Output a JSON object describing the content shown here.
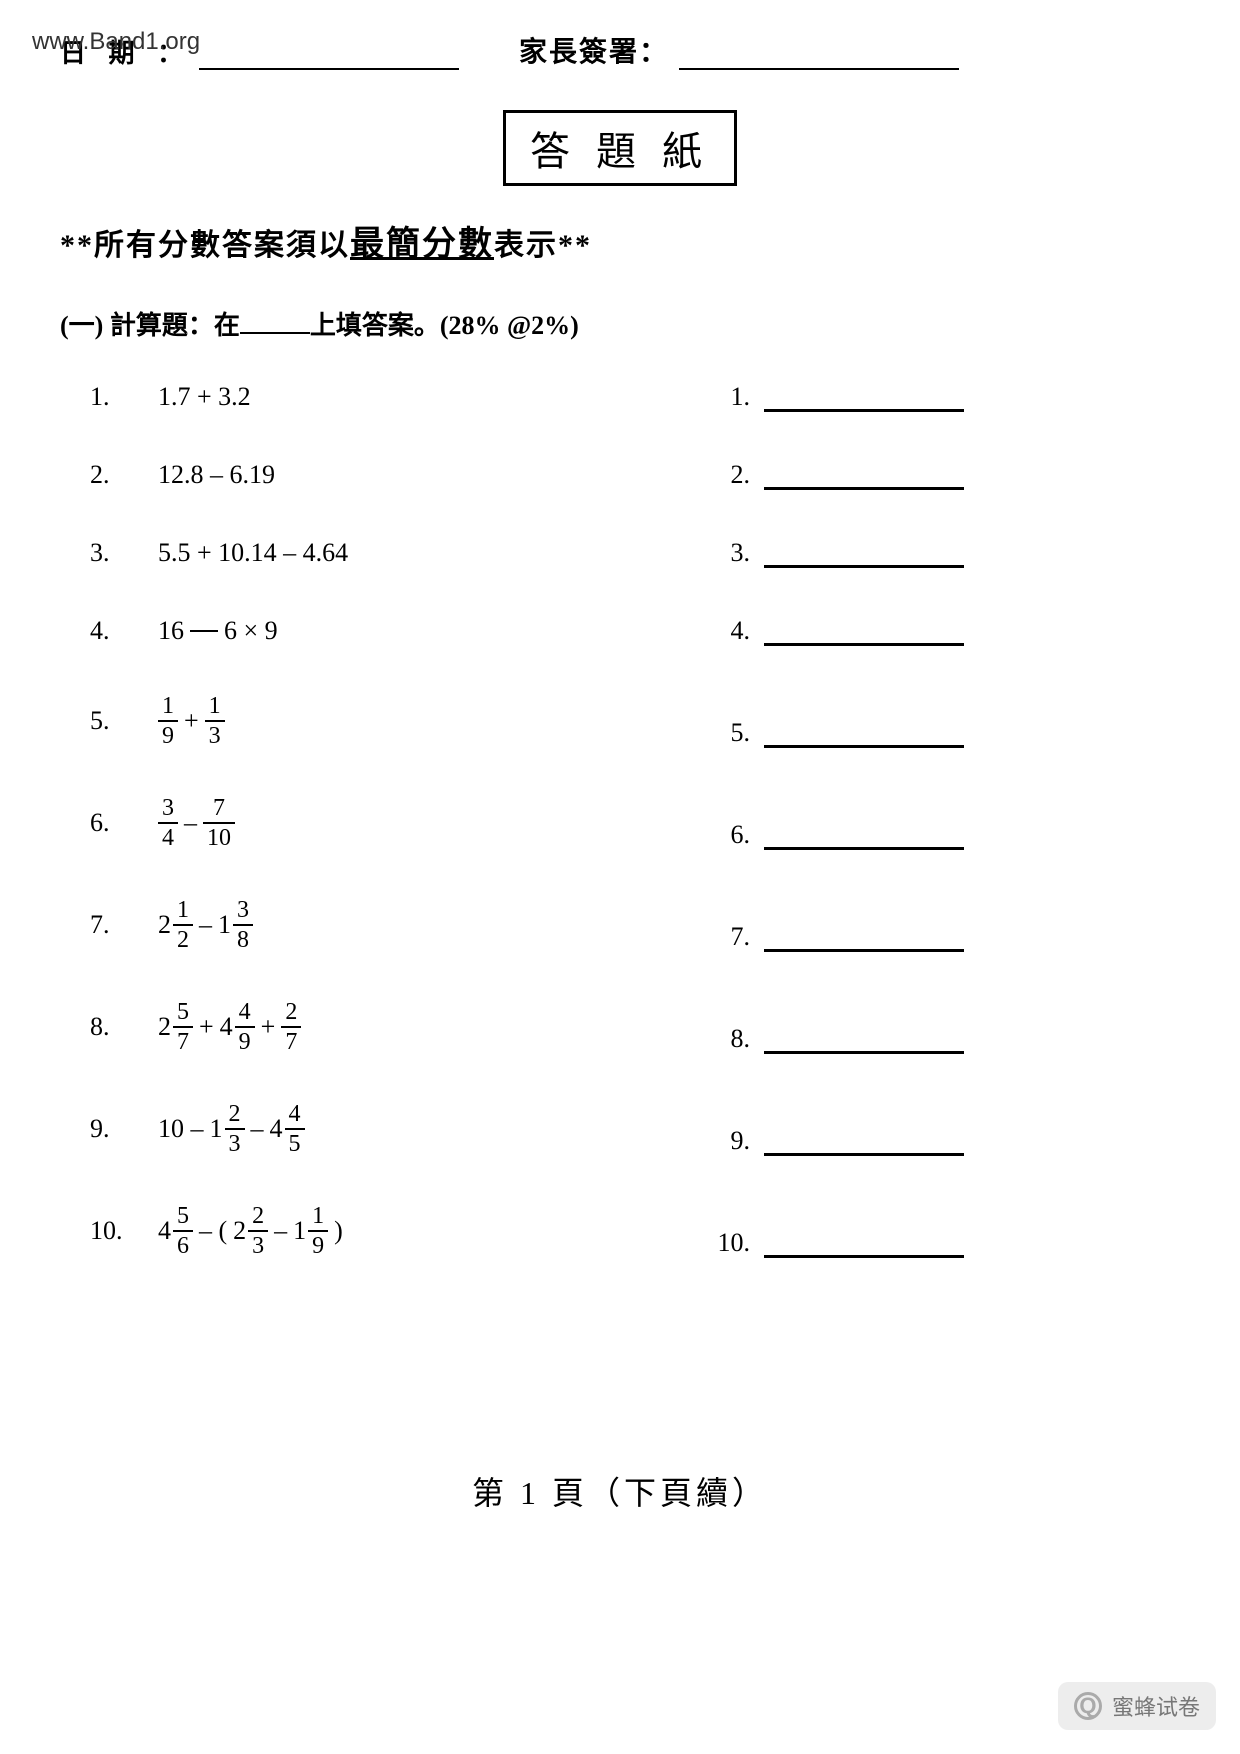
{
  "header": {
    "date_label": "日 期 ：",
    "watermark": "www.Band1.org",
    "sign_label": "家長簽署："
  },
  "title": "答 題 紙",
  "instruction": {
    "prefix": "**所有分數答案須以",
    "emph": "最簡分數",
    "suffix": "表示**"
  },
  "section": {
    "label_prefix": "(一) 計算題：在",
    "label_suffix": "上填答案。(28%   @2%)"
  },
  "questions": [
    {
      "n": "1.",
      "type": "text",
      "expr": "1.7 + 3.2"
    },
    {
      "n": "2.",
      "type": "text",
      "expr": "12.8 – 6.19"
    },
    {
      "n": "3.",
      "type": "text",
      "expr": "5.5 + 10.14 – 4.64"
    },
    {
      "n": "4.",
      "type": "gap",
      "a": "16",
      "b": "6 × 9"
    },
    {
      "n": "5.",
      "type": "frac2",
      "op": "+",
      "f1": [
        "1",
        "9"
      ],
      "f2": [
        "1",
        "3"
      ]
    },
    {
      "n": "6.",
      "type": "frac2",
      "op": "–",
      "f1": [
        "3",
        "4"
      ],
      "f2": [
        "7",
        "10"
      ]
    },
    {
      "n": "7.",
      "type": "mix2",
      "op": "–",
      "m1": [
        "2",
        "1",
        "2"
      ],
      "m2": [
        "1",
        "3",
        "8"
      ]
    },
    {
      "n": "8.",
      "type": "mix3",
      "m1": [
        "2",
        "5",
        "7"
      ],
      "op1": "+",
      "m2": [
        "4",
        "4",
        "9"
      ],
      "op2": "+",
      "f3": [
        "2",
        "7"
      ]
    },
    {
      "n": "9.",
      "type": "q9",
      "lead": "10",
      "op1": "–",
      "m1": [
        "1",
        "2",
        "3"
      ],
      "op2": "–",
      "m2": [
        "4",
        "4",
        "5"
      ]
    },
    {
      "n": "10.",
      "type": "q10",
      "m1": [
        "4",
        "5",
        "6"
      ],
      "op1": "–",
      "m2": [
        "2",
        "2",
        "3"
      ],
      "op2": "–",
      "m3": [
        "1",
        "1",
        "9"
      ]
    }
  ],
  "answers": [
    "1.",
    "2.",
    "3.",
    "4.",
    "5.",
    "6.",
    "7.",
    "8.",
    "9.",
    "10."
  ],
  "footer": "第 1 頁（下頁續）",
  "badge": "蜜蜂试卷",
  "colors": {
    "text": "#000000",
    "bg": "#ffffff",
    "badge_bg": "#e8e8e8",
    "badge_fg": "#777777"
  }
}
